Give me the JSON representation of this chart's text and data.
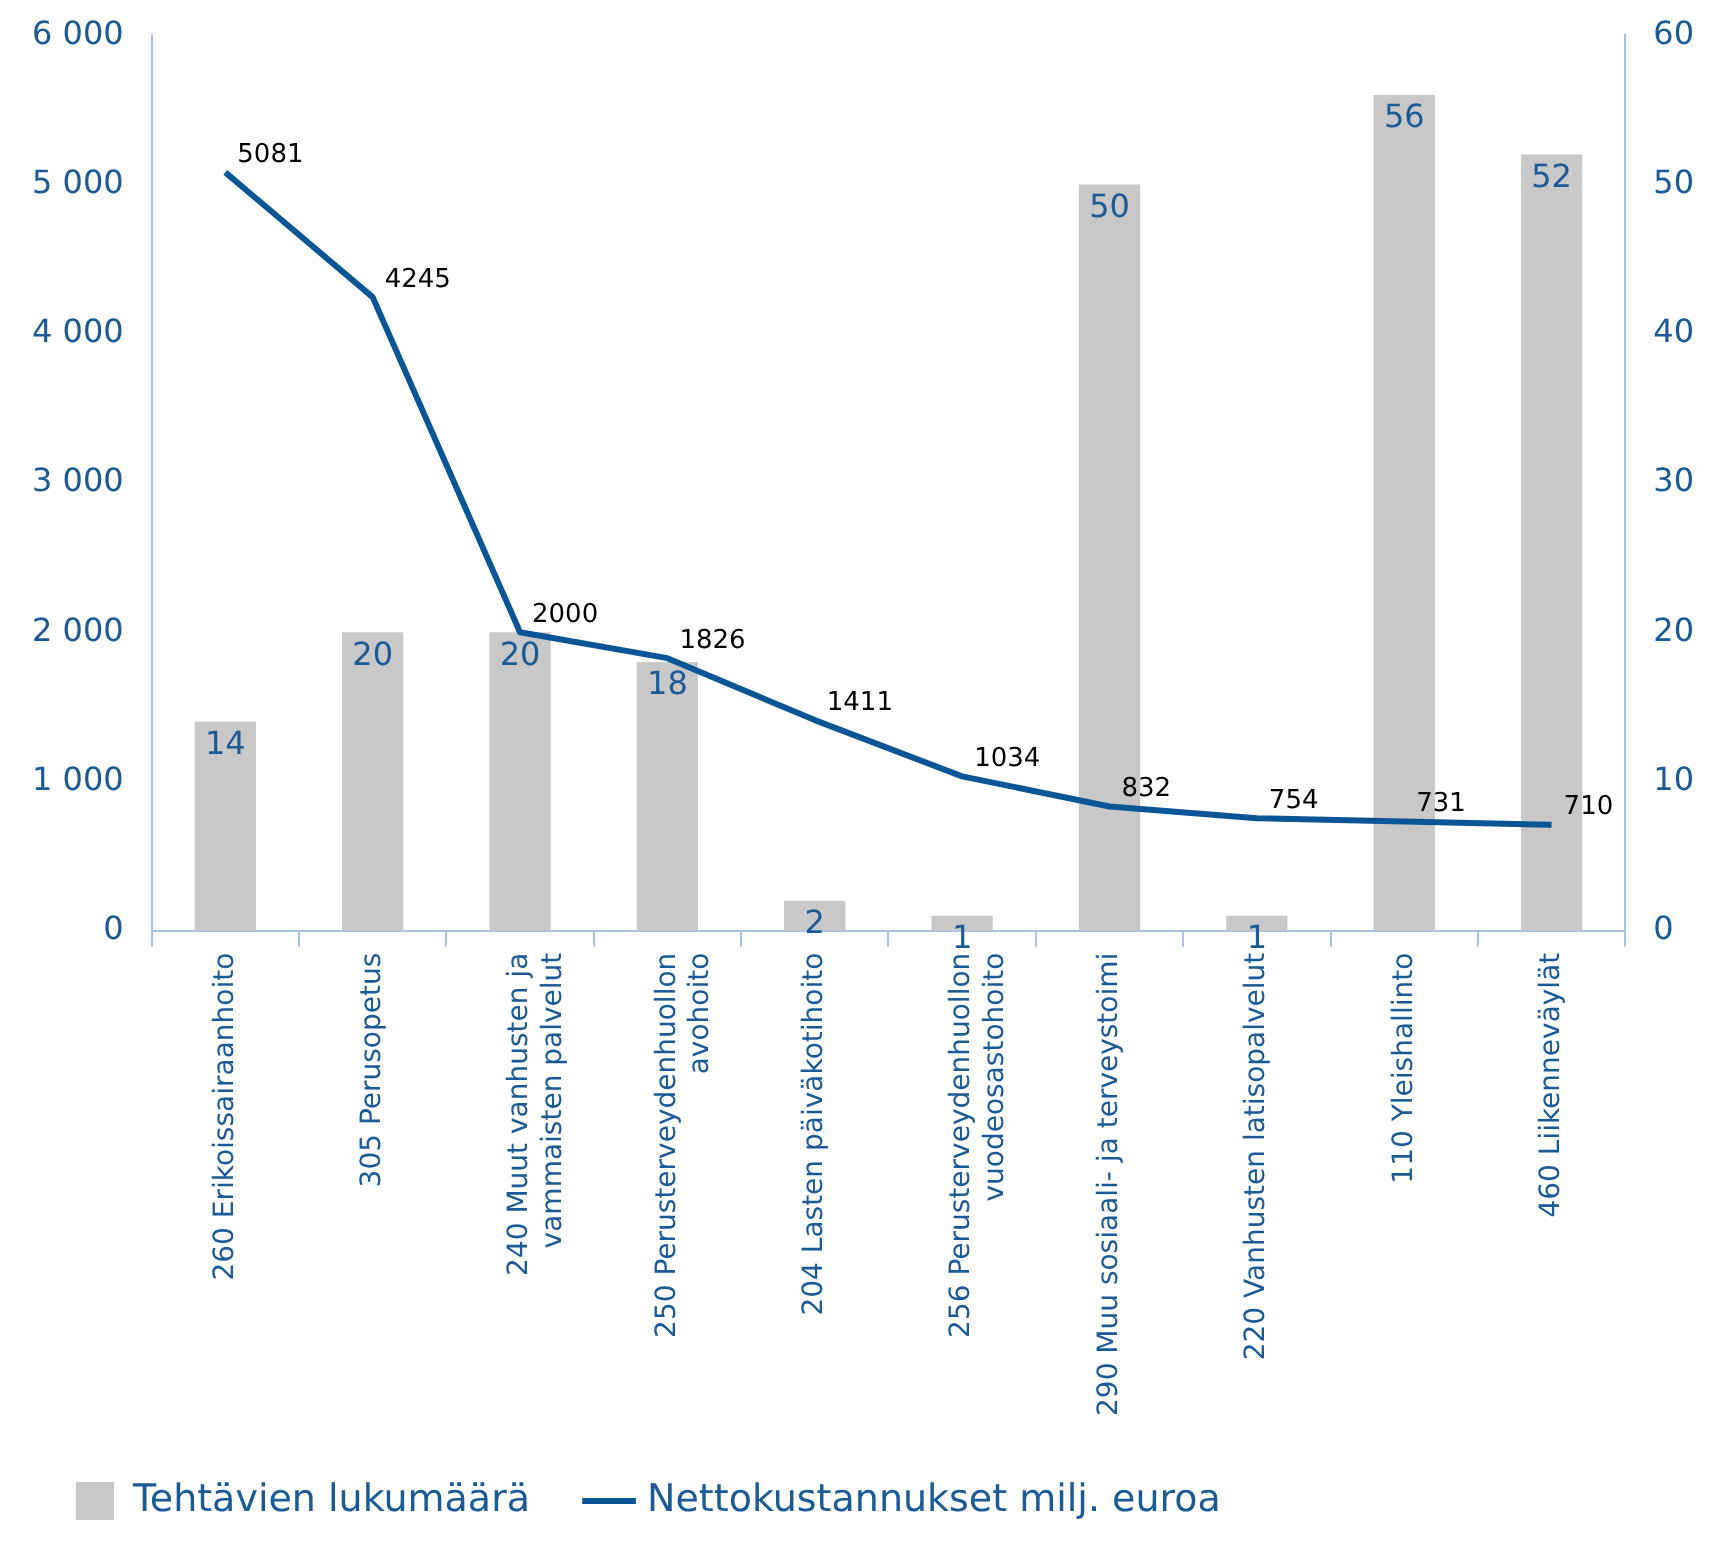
{
  "chart_data": {
    "type": "bar",
    "categories": [
      "260 Erikoissairaanhoito",
      "305 Perusopetus",
      "240 Muut vanhusten ja vammaisten palvelut",
      "250 Perusterveydenhuollon avohoito",
      "204 Lasten päiväkotihoito",
      "256 Perusterveydenhuollon vuodeosastohoito",
      "290 Muu sosiaali- ja terveystoimi",
      "220 Vanhusten latisopalvelut",
      "110 Yleishallinto",
      "460 Liikenneväylät"
    ],
    "series": [
      {
        "name": "Tehtävien lukumäärä",
        "axis": "y2",
        "color": "#c8c8c8",
        "values": [
          14,
          20,
          20,
          18,
          2,
          1,
          50,
          1,
          56,
          52
        ]
      },
      {
        "name": "Nettokustannukset milj. euroa",
        "type": "line",
        "axis": "y",
        "color": "#0a5596",
        "values": [
          5081,
          4245,
          2000,
          1826,
          1411,
          1034,
          832,
          754,
          731,
          710
        ]
      }
    ],
    "ylim": [
      0,
      6000
    ],
    "yticks": [
      0,
      {
        "value": 1000,
        "label": "1 000"
      },
      {
        "value": 2000,
        "label": "2 000"
      },
      {
        "value": 3000,
        "label": "3 000"
      },
      {
        "value": 4000,
        "label": "4 000"
      },
      {
        "value": 5000,
        "label": "5 000"
      },
      {
        "value": 6000,
        "label": "6 000"
      }
    ],
    "y2lim": [
      0,
      60
    ],
    "y2ticks": [
      0,
      10,
      20,
      30,
      40,
      50,
      60
    ],
    "data_labels": true,
    "grid": false,
    "legend": "bottom",
    "marker": "none"
  }
}
